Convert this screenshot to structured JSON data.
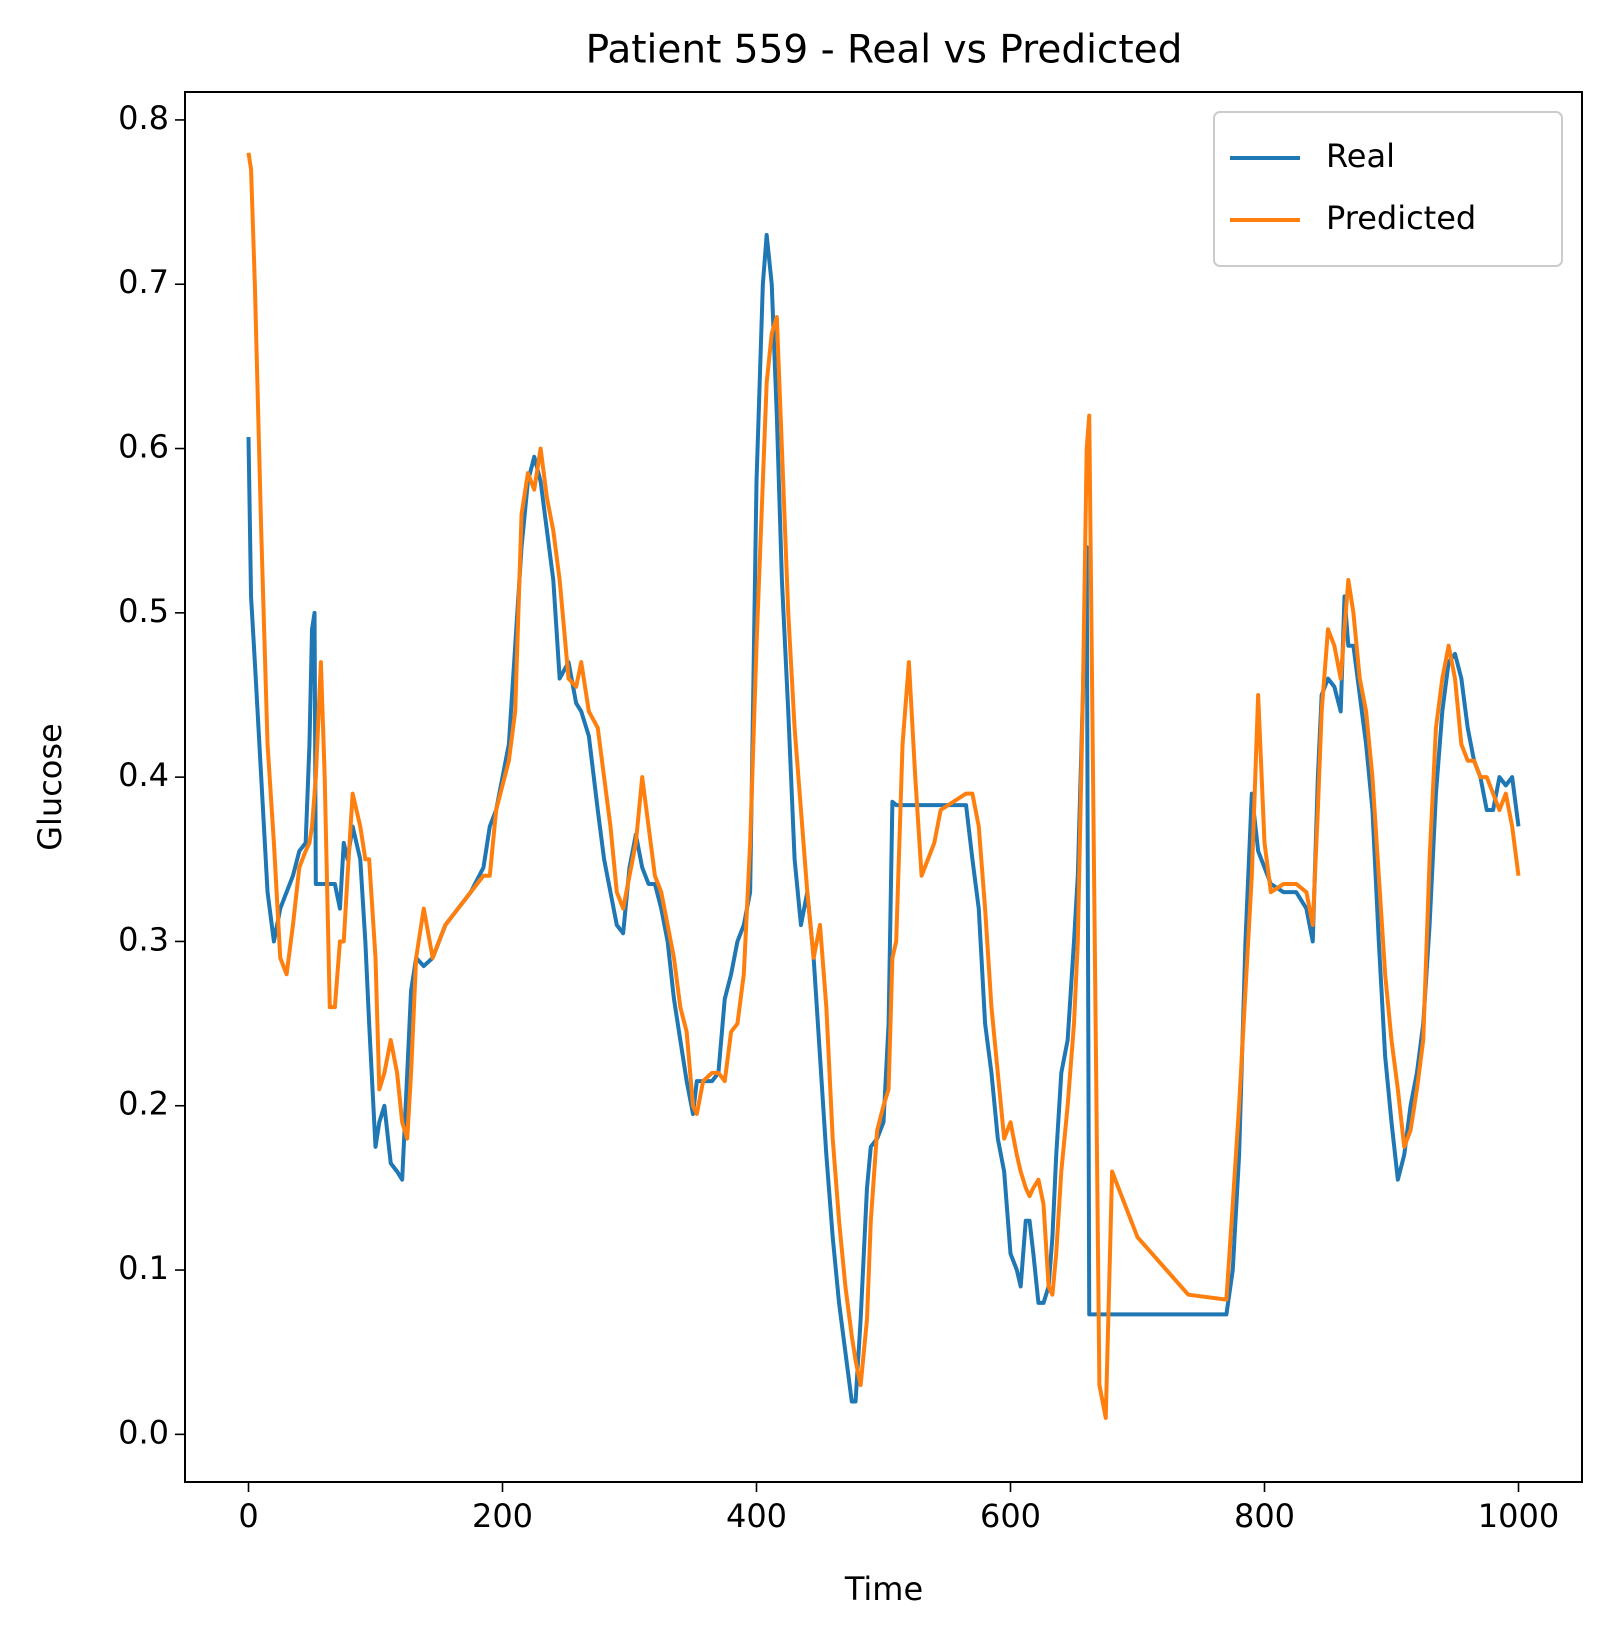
{
  "chart_data": {
    "type": "line",
    "title": "Patient 559 - Real vs Predicted",
    "x_label": "Time",
    "y_label": "Glucose",
    "x": [
      0,
      2,
      5,
      10,
      15,
      20,
      25,
      30,
      35,
      40,
      45,
      48,
      50,
      52,
      53,
      57,
      60,
      64,
      68,
      72,
      75,
      78,
      82,
      88,
      92,
      95,
      100,
      103,
      107,
      112,
      117,
      121,
      125,
      128,
      132,
      138,
      145,
      155,
      165,
      175,
      185,
      190,
      195,
      205,
      210,
      215,
      220,
      225,
      230,
      235,
      240,
      245,
      252,
      258,
      262,
      268,
      275,
      280,
      285,
      290,
      295,
      300,
      305,
      310,
      315,
      320,
      325,
      330,
      335,
      340,
      345,
      350,
      353,
      358,
      365,
      370,
      375,
      380,
      385,
      390,
      395,
      400,
      405,
      408,
      412,
      416,
      420,
      425,
      430,
      435,
      440,
      445,
      450,
      455,
      460,
      465,
      470,
      475,
      478,
      482,
      487,
      490,
      495,
      500,
      504,
      507,
      510,
      515,
      520,
      525,
      530,
      540,
      545,
      555,
      565,
      570,
      575,
      580,
      585,
      590,
      595,
      600,
      605,
      608,
      612,
      615,
      618,
      622,
      626,
      630,
      633,
      636,
      640,
      645,
      650,
      653,
      657,
      660,
      662,
      665,
      670,
      675,
      678,
      680,
      700,
      740,
      770,
      775,
      780,
      785,
      790,
      795,
      800,
      805,
      815,
      825,
      833,
      838,
      842,
      845,
      850,
      855,
      860,
      863,
      866,
      870,
      875,
      880,
      885,
      890,
      895,
      900,
      905,
      910,
      915,
      920,
      925,
      930,
      935,
      940,
      945,
      950,
      955,
      960,
      965,
      970,
      975,
      980,
      985,
      990,
      995,
      1000
    ],
    "series": [
      {
        "name": "Real",
        "color": "#1f77b4",
        "values": [
          0.607,
          0.51,
          0.47,
          0.4,
          0.33,
          0.3,
          0.32,
          0.33,
          0.34,
          0.355,
          0.36,
          0.42,
          0.49,
          0.5,
          0.335,
          0.335,
          0.335,
          0.335,
          0.335,
          0.32,
          0.36,
          0.35,
          0.37,
          0.35,
          0.3,
          0.25,
          0.175,
          0.19,
          0.2,
          0.165,
          0.16,
          0.155,
          0.22,
          0.27,
          0.29,
          0.285,
          0.29,
          0.31,
          0.32,
          0.33,
          0.345,
          0.37,
          0.38,
          0.42,
          0.48,
          0.54,
          0.58,
          0.595,
          0.58,
          0.55,
          0.52,
          0.46,
          0.47,
          0.445,
          0.44,
          0.425,
          0.38,
          0.35,
          0.33,
          0.31,
          0.305,
          0.345,
          0.365,
          0.345,
          0.335,
          0.335,
          0.32,
          0.3,
          0.265,
          0.24,
          0.215,
          0.195,
          0.215,
          0.215,
          0.215,
          0.22,
          0.265,
          0.28,
          0.3,
          0.31,
          0.33,
          0.58,
          0.7,
          0.73,
          0.7,
          0.62,
          0.52,
          0.44,
          0.35,
          0.31,
          0.33,
          0.29,
          0.23,
          0.17,
          0.12,
          0.08,
          0.05,
          0.02,
          0.02,
          0.07,
          0.15,
          0.175,
          0.18,
          0.19,
          0.25,
          0.385,
          0.383,
          0.383,
          0.383,
          0.383,
          0.383,
          0.383,
          0.383,
          0.383,
          0.383,
          0.35,
          0.32,
          0.25,
          0.22,
          0.18,
          0.16,
          0.11,
          0.1,
          0.09,
          0.13,
          0.13,
          0.11,
          0.08,
          0.08,
          0.09,
          0.12,
          0.17,
          0.22,
          0.24,
          0.3,
          0.34,
          0.45,
          0.54,
          0.073,
          0.073,
          0.073,
          0.073,
          0.073,
          0.073,
          0.073,
          0.073,
          0.073,
          0.1,
          0.17,
          0.3,
          0.39,
          0.355,
          0.345,
          0.335,
          0.33,
          0.33,
          0.32,
          0.3,
          0.4,
          0.45,
          0.46,
          0.455,
          0.44,
          0.51,
          0.48,
          0.48,
          0.45,
          0.42,
          0.38,
          0.3,
          0.23,
          0.19,
          0.155,
          0.17,
          0.2,
          0.22,
          0.25,
          0.31,
          0.39,
          0.44,
          0.47,
          0.475,
          0.46,
          0.43,
          0.41,
          0.4,
          0.38,
          0.38,
          0.4,
          0.395,
          0.4,
          0.37
        ]
      },
      {
        "name": "Predicted",
        "color": "#ff7f0e",
        "values": [
          0.78,
          0.77,
          0.7,
          0.55,
          0.42,
          0.36,
          0.29,
          0.28,
          0.31,
          0.345,
          0.355,
          0.36,
          0.37,
          0.39,
          0.4,
          0.47,
          0.4,
          0.26,
          0.26,
          0.3,
          0.3,
          0.34,
          0.39,
          0.37,
          0.35,
          0.35,
          0.29,
          0.21,
          0.22,
          0.24,
          0.22,
          0.19,
          0.18,
          0.22,
          0.29,
          0.32,
          0.29,
          0.31,
          0.32,
          0.33,
          0.34,
          0.34,
          0.38,
          0.41,
          0.44,
          0.56,
          0.585,
          0.575,
          0.6,
          0.57,
          0.55,
          0.52,
          0.46,
          0.455,
          0.47,
          0.44,
          0.43,
          0.4,
          0.37,
          0.33,
          0.32,
          0.34,
          0.36,
          0.4,
          0.37,
          0.34,
          0.33,
          0.31,
          0.29,
          0.26,
          0.245,
          0.2,
          0.195,
          0.215,
          0.22,
          0.22,
          0.215,
          0.245,
          0.25,
          0.28,
          0.36,
          0.48,
          0.58,
          0.64,
          0.67,
          0.68,
          0.6,
          0.5,
          0.43,
          0.38,
          0.33,
          0.29,
          0.31,
          0.26,
          0.18,
          0.13,
          0.09,
          0.06,
          0.045,
          0.03,
          0.07,
          0.13,
          0.185,
          0.2,
          0.21,
          0.29,
          0.3,
          0.42,
          0.47,
          0.4,
          0.34,
          0.36,
          0.38,
          0.385,
          0.39,
          0.39,
          0.37,
          0.32,
          0.26,
          0.22,
          0.18,
          0.19,
          0.17,
          0.16,
          0.15,
          0.145,
          0.15,
          0.155,
          0.14,
          0.09,
          0.085,
          0.11,
          0.16,
          0.2,
          0.25,
          0.3,
          0.45,
          0.6,
          0.62,
          0.4,
          0.03,
          0.01,
          0.1,
          0.16,
          0.12,
          0.085,
          0.082,
          0.14,
          0.2,
          0.27,
          0.34,
          0.45,
          0.36,
          0.33,
          0.335,
          0.335,
          0.33,
          0.31,
          0.38,
          0.44,
          0.49,
          0.48,
          0.46,
          0.49,
          0.52,
          0.5,
          0.46,
          0.44,
          0.4,
          0.34,
          0.28,
          0.24,
          0.21,
          0.175,
          0.185,
          0.21,
          0.24,
          0.35,
          0.43,
          0.46,
          0.48,
          0.46,
          0.42,
          0.41,
          0.41,
          0.4,
          0.4,
          0.39,
          0.38,
          0.39,
          0.37,
          0.34
        ]
      }
    ],
    "xlim": [
      -50,
      1050
    ],
    "ylim": [
      -0.029,
      0.817
    ],
    "xticks": [
      0,
      200,
      400,
      600,
      800,
      1000
    ],
    "yticks": [
      {
        "value": 0,
        "label": "0.0"
      },
      0.1,
      0.2,
      0.3,
      0.4,
      0.5,
      0.6,
      0.7,
      0.8
    ],
    "legend": "upper right"
  }
}
